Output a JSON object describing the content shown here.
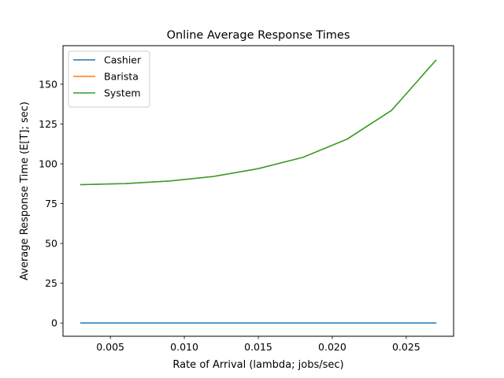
{
  "chart_data": {
    "type": "line",
    "title": "Online Average Response Times",
    "xlabel": "Rate of Arrival (lambda; jobs/sec)",
    "ylabel": "Average Response Time (E[T]; sec)",
    "xlim": [
      0.0018,
      0.0282
    ],
    "ylim": [
      -8.3,
      174.2
    ],
    "xticks": [
      0.005,
      0.01,
      0.015,
      0.02,
      0.025
    ],
    "xtick_labels": [
      "0.005",
      "0.010",
      "0.015",
      "0.020",
      "0.025"
    ],
    "yticks": [
      0,
      25,
      50,
      75,
      100,
      125,
      150
    ],
    "ytick_labels": [
      "0",
      "25",
      "50",
      "75",
      "100",
      "125",
      "150"
    ],
    "grid": false,
    "legend_position": "top-left",
    "x": [
      0.003,
      0.006,
      0.009,
      0.012,
      0.015,
      0.018,
      0.021,
      0.024,
      0.027
    ],
    "series": [
      {
        "name": "Cashier",
        "color": "#1f77b4",
        "values": [
          0.05,
          0.05,
          0.05,
          0.05,
          0.05,
          0.05,
          0.05,
          0.05,
          0.05
        ]
      },
      {
        "name": "Barista",
        "color": "#ff7f0e",
        "values": [
          86.9,
          87.6,
          89.2,
          92.1,
          97.0,
          104.0,
          115.5,
          133.5,
          165.0
        ]
      },
      {
        "name": "System",
        "color": "#2ca02c",
        "values": [
          86.9,
          87.6,
          89.2,
          92.1,
          97.0,
          104.0,
          115.5,
          133.5,
          165.0
        ]
      }
    ]
  }
}
